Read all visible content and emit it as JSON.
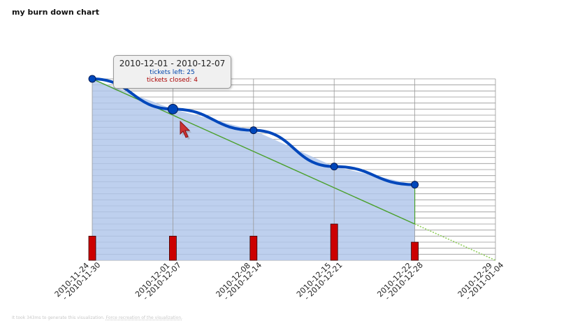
{
  "title": "my burn down chart",
  "footer": {
    "text": "It took 343ms to generate this visualization.",
    "link": "Force recreation of the visualization."
  },
  "tooltip": {
    "range": "2010-12-01 - 2010-12-07",
    "tickets_left_label": "tickets left: 25",
    "tickets_closed_label": "tickets closed: 4"
  },
  "colors": {
    "area_fill": "#b0c6ea",
    "actual_line": "#0047bb",
    "ideal_line": "#4aa02c",
    "projection_line": "#8fce5a",
    "closed_bar": "#cc0000",
    "grid": "#999999"
  },
  "chart_data": {
    "type": "line",
    "categories": [
      "2010-11-24 - 2010-11-30",
      "2010-12-01 - 2010-12-07",
      "2010-12-08 - 2010-12-14",
      "2010-12-15 - 2010-12-21",
      "2010-12-22 - 2010-12-28",
      "2010-12-29 - 2011-01-04"
    ],
    "ylim": [
      0,
      30
    ],
    "y_gridline_step": 1,
    "grid": true,
    "series": [
      {
        "kind": "area-line",
        "values": [
          30,
          25,
          21.5,
          15.5,
          12.5,
          null
        ]
      },
      {
        "kind": "ideal-line",
        "values": [
          30,
          24,
          18,
          12,
          6,
          0
        ]
      },
      {
        "kind": "bars",
        "values": [
          4,
          4,
          4,
          6,
          3,
          null
        ]
      }
    ]
  }
}
